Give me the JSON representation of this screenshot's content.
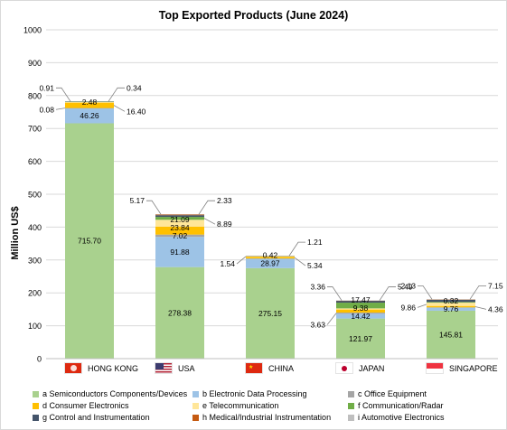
{
  "chart_data": {
    "type": "bar",
    "stacked": true,
    "title": "Top Exported Products (June 2024)",
    "ylabel": "Million US$",
    "ylim": [
      0,
      1000
    ],
    "yticks": [
      "0",
      "100",
      "200",
      "300",
      "400",
      "500",
      "600",
      "700",
      "800",
      "900",
      "1000"
    ],
    "grid": true,
    "legend_position": "bottom",
    "categories": [
      "HONG KONG",
      "USA",
      "CHINA",
      "JAPAN",
      "SINGAPORE"
    ],
    "series": [
      {
        "name": "a Semiconductors Components/Devices",
        "color": "#a9d18e",
        "values": [
          715.7,
          278.38,
          275.15,
          121.97,
          145.81
        ]
      },
      {
        "name": "b Electronic Data Processing",
        "color": "#9dc3e6",
        "values": [
          46.26,
          91.88,
          28.97,
          14.42,
          9.76
        ]
      },
      {
        "name": "c Office Equipment",
        "color": "#a5a5a5",
        "values": [
          0.08,
          7.02,
          0.42,
          3.63,
          0.32
        ]
      },
      {
        "name": "d Consumer Electronics",
        "color": "#ffc000",
        "values": [
          16.4,
          23.84,
          5.34,
          9.38,
          4.36
        ]
      },
      {
        "name": "e Telecommunication",
        "color": "#ffe699",
        "values": [
          2.48,
          21.09,
          1.54,
          3.36,
          9.86
        ]
      },
      {
        "name": "f Communication/Radar",
        "color": "#70ad47",
        "values": [
          0.34,
          8.89,
          1.21,
          17.47,
          2.13
        ]
      },
      {
        "name": "g Control and Instrumentation",
        "color": "#44546a",
        "values": [
          0.91,
          5.17,
          0.1,
          5.49,
          7.15
        ]
      },
      {
        "name": "h Medical/Industrial Instrumentation",
        "color": "#c55a11",
        "values": [
          0.0,
          2.33,
          0.1,
          0.8,
          0.5
        ]
      },
      {
        "name": "i Automotive Electronics",
        "color": "#bfbfbf",
        "values": [
          0.0,
          0.5,
          0.1,
          0.5,
          0.5
        ]
      }
    ],
    "data_labels": [
      [
        {
          "text": "715.70",
          "series": 0,
          "pos": "inside"
        },
        {
          "text": "46.26",
          "series": 1,
          "pos": "inside"
        },
        {
          "text": "2.48",
          "series": 4,
          "pos": "inside"
        },
        {
          "text": "0.08",
          "series": 2,
          "pos": "left"
        },
        {
          "text": "0.91",
          "series": 6,
          "pos": "left-top"
        },
        {
          "text": "0.34",
          "series": 5,
          "pos": "right-top"
        },
        {
          "text": "16.40",
          "series": 3,
          "pos": "right"
        }
      ],
      [
        {
          "text": "278.38",
          "series": 0,
          "pos": "inside"
        },
        {
          "text": "91.88",
          "series": 1,
          "pos": "inside"
        },
        {
          "text": "7.02",
          "series": 2,
          "pos": "inside"
        },
        {
          "text": "23.84",
          "series": 3,
          "pos": "inside"
        },
        {
          "text": "21.09",
          "series": 4,
          "pos": "inside"
        },
        {
          "text": "5.17",
          "series": 6,
          "pos": "left-top"
        },
        {
          "text": "2.33",
          "series": 7,
          "pos": "right-top"
        },
        {
          "text": "8.89",
          "series": 5,
          "pos": "right"
        }
      ],
      [
        {
          "text": "275.15",
          "series": 0,
          "pos": "inside"
        },
        {
          "text": "28.97",
          "series": 1,
          "pos": "inside"
        },
        {
          "text": "0.42",
          "series": 2,
          "pos": "inside"
        },
        {
          "text": "1.54",
          "series": 4,
          "pos": "left"
        },
        {
          "text": "1.21",
          "series": 5,
          "pos": "right-top"
        },
        {
          "text": "5.34",
          "series": 3,
          "pos": "right"
        }
      ],
      [
        {
          "text": "121.97",
          "series": 0,
          "pos": "inside"
        },
        {
          "text": "14.42",
          "series": 1,
          "pos": "inside"
        },
        {
          "text": "9.38",
          "series": 3,
          "pos": "inside"
        },
        {
          "text": "17.47",
          "series": 5,
          "pos": "inside"
        },
        {
          "text": "3.63",
          "series": 2,
          "pos": "left"
        },
        {
          "text": "3.36",
          "series": 4,
          "pos": "left-top"
        },
        {
          "text": "5.49",
          "series": 6,
          "pos": "right-top"
        }
      ],
      [
        {
          "text": "145.81",
          "series": 0,
          "pos": "inside"
        },
        {
          "text": "9.76",
          "series": 1,
          "pos": "inside"
        },
        {
          "text": "0.32",
          "series": 2,
          "pos": "inside"
        },
        {
          "text": "9.86",
          "series": 4,
          "pos": "left"
        },
        {
          "text": "2.13",
          "series": 5,
          "pos": "left-top"
        },
        {
          "text": "7.15",
          "series": 6,
          "pos": "right-top"
        },
        {
          "text": "4.36",
          "series": 3,
          "pos": "right"
        }
      ]
    ]
  },
  "flags": [
    {
      "country": "HONG KONG",
      "icon": "hong-kong-flag-icon"
    },
    {
      "country": "USA",
      "icon": "usa-flag-icon"
    },
    {
      "country": "CHINA",
      "icon": "china-flag-icon"
    },
    {
      "country": "JAPAN",
      "icon": "japan-flag-icon"
    },
    {
      "country": "SINGAPORE",
      "icon": "singapore-flag-icon"
    }
  ]
}
